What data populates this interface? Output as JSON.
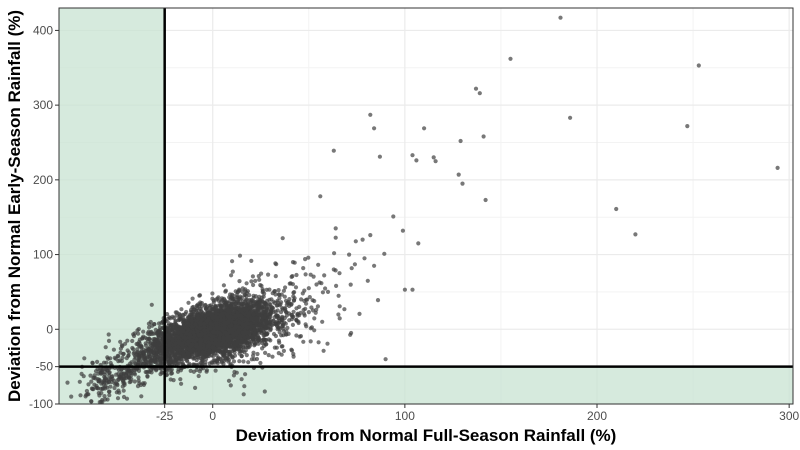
{
  "chart_data": {
    "type": "scatter",
    "title": "",
    "xlabel": "Deviation from Normal Full-Season Rainfall (%)",
    "ylabel": "Deviation from Normal Early-Season Rainfall (%)",
    "xlim": [
      -80,
      302
    ],
    "ylim": [
      -100,
      430
    ],
    "x_ticks": [
      -25,
      0,
      100,
      200,
      300
    ],
    "x_tick_labels": [
      "-25",
      "0",
      "100",
      "200",
      "300"
    ],
    "y_ticks": [
      -100,
      -50,
      0,
      100,
      200,
      300,
      400
    ],
    "y_tick_labels": [
      "-100",
      "-50",
      "0",
      "100",
      "200",
      "300",
      "400"
    ],
    "grid": true,
    "reference_lines": {
      "x": -25,
      "y": -50
    },
    "shaded_region": "x < -25 or y < -50",
    "colors": {
      "points": "#3f3f3f",
      "shade": "#c8e3d2",
      "reference": "#000000",
      "grid": "#ebebeb",
      "border": "#333333"
    },
    "series": [
      {
        "x": [
          181,
          155,
          253,
          137,
          139,
          82,
          186,
          84,
          110,
          247,
          141,
          129,
          63,
          104,
          87,
          115,
          106,
          116,
          128,
          130,
          294,
          56,
          142,
          210,
          94,
          99,
          220,
          64,
          82,
          107,
          84,
          100,
          104,
          86,
          71,
          78,
          79,
          74,
          63,
          66,
          54,
          50,
          46,
          45,
          57,
          60,
          72,
          90
        ],
        "y": [
          417,
          362,
          353,
          322,
          316,
          287,
          283,
          269,
          269,
          272,
          258,
          252,
          239,
          233,
          231,
          230,
          226,
          225,
          207,
          195,
          216,
          178,
          173,
          161,
          151,
          132,
          127,
          135,
          126,
          115,
          85,
          53,
          53,
          39,
          100,
          120,
          95,
          87,
          80,
          75,
          60,
          55,
          40,
          30,
          10,
          50,
          -5,
          -40
        ]
      }
    ],
    "dense_cloud": {
      "core_x": 0,
      "core_y": -5,
      "spread_x": 16,
      "spread_y": 20,
      "correlation": 0.55,
      "point_count": 3500,
      "tail_note": "diagonal band from about (-65,-90) to (10,150)"
    }
  }
}
